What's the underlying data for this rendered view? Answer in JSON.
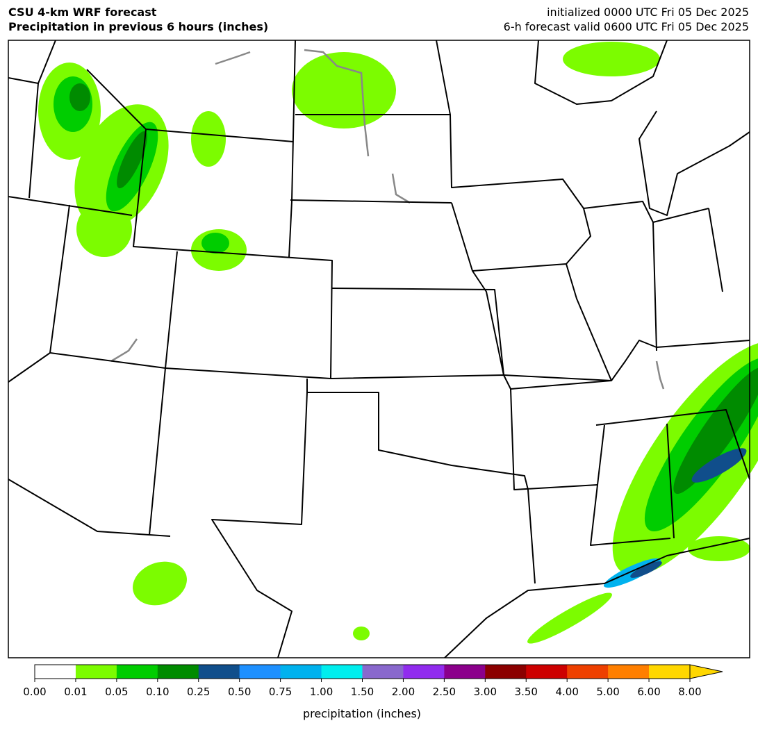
{
  "header": {
    "title": "CSU 4-km WRF forecast",
    "subtitle": "Precipitation in previous 6 hours (inches)",
    "init": "initialized 0000 UTC Fri 05 Dec 2025",
    "valid": "6-h forecast valid 0600 UTC Fri 05 Dec 2025"
  },
  "colorbar": {
    "label": "precipitation (inches)",
    "ticks": [
      {
        "value": 0,
        "label": "0.00"
      },
      {
        "value": 0.01,
        "label": "0.01"
      },
      {
        "value": 0.05,
        "label": "0.05"
      },
      {
        "value": 0.1,
        "label": "0.10"
      },
      {
        "value": 0.25,
        "label": "0.25"
      },
      {
        "value": 0.5,
        "label": "0.50"
      },
      {
        "value": 0.75,
        "label": "0.75"
      },
      {
        "value": 1,
        "label": "1.00"
      },
      {
        "value": 1.5,
        "label": "1.50"
      },
      {
        "value": 2,
        "label": "2.00"
      },
      {
        "value": 2.5,
        "label": "2.50"
      },
      {
        "value": 3,
        "label": "3.00"
      },
      {
        "value": 3.5,
        "label": "3.50"
      },
      {
        "value": 4,
        "label": "4.00"
      },
      {
        "value": 5,
        "label": "5.00"
      },
      {
        "value": 6,
        "label": "6.00"
      },
      {
        "value": 8,
        "label": "8.00"
      }
    ],
    "colors": [
      "#ffffff",
      "#7cfc00",
      "#00cd00",
      "#008b00",
      "#104e8b",
      "#1e90ff",
      "#00b2ee",
      "#00eeee",
      "#8968cd",
      "#912cee",
      "#8b008b",
      "#8b0000",
      "#cd0000",
      "#ee4000",
      "#ff7f00",
      "#ffd700"
    ]
  }
}
